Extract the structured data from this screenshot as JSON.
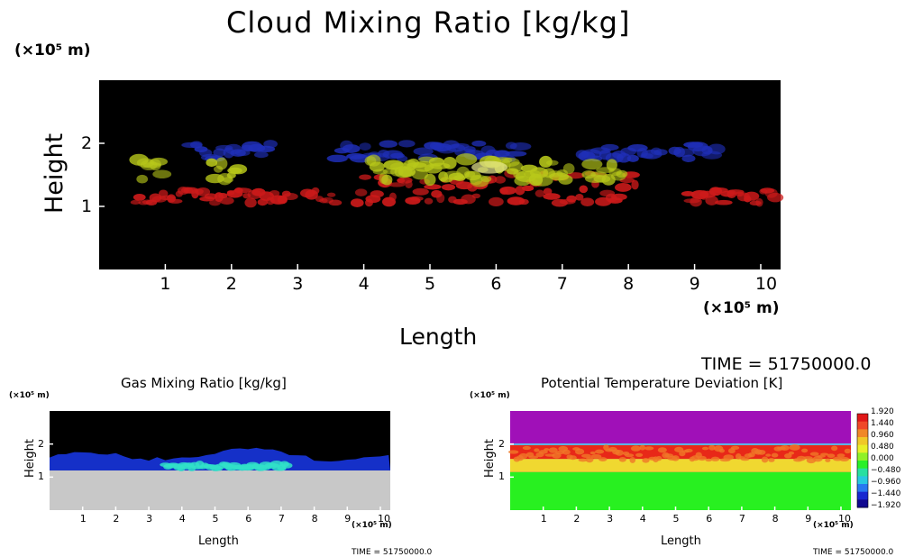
{
  "chart_data": [
    {
      "type": "heatmap",
      "title": "Cloud Mixing Ratio [kg/kg]",
      "xlabel": "Length",
      "ylabel": "Height",
      "x_unit": "(×10⁵ m)",
      "y_unit": "(×10⁵ m)",
      "xlim": [
        0,
        10.3
      ],
      "ylim": [
        0,
        3.0
      ],
      "x_ticks": [
        "1",
        "2",
        "3",
        "4",
        "5",
        "6",
        "7",
        "8",
        "9",
        "10"
      ],
      "y_ticks": [
        "1",
        "2"
      ],
      "background": "#000000",
      "layers": [
        {
          "color": "#cc1a1a",
          "height_range": [
            1.05,
            1.35
          ]
        },
        {
          "color": "#b8c81a",
          "height_range": [
            1.4,
            1.75
          ]
        },
        {
          "color": "#1f2fb8",
          "height_range": [
            1.75,
            2.0
          ]
        }
      ],
      "time_label": "TIME =  51750000.0"
    },
    {
      "type": "heatmap",
      "title": "Gas Mixing Ratio [kg/kg]",
      "xlabel": "Length",
      "ylabel": "Height",
      "x_unit": "(×10⁵ m)",
      "y_unit": "(×10⁵ m)",
      "xlim": [
        0,
        10.3
      ],
      "ylim": [
        0,
        3.0
      ],
      "x_ticks": [
        "1",
        "2",
        "3",
        "4",
        "5",
        "6",
        "7",
        "8",
        "9",
        "10"
      ],
      "y_ticks": [
        "1",
        "2"
      ],
      "colors": {
        "lower": "#c8c8c8",
        "band": "#1530c8",
        "peak": "#30e0c8",
        "top": "#000000"
      },
      "time_label": "TIME =  51750000.0"
    },
    {
      "type": "heatmap",
      "title": "Potential Temperature Deviation [K]",
      "xlabel": "Length",
      "ylabel": "Height",
      "x_unit": "(×10⁵ m)",
      "y_unit": "(×10⁵ m)",
      "xlim": [
        0,
        10.3
      ],
      "ylim": [
        0,
        3.0
      ],
      "x_ticks": [
        "1",
        "2",
        "3",
        "4",
        "5",
        "6",
        "7",
        "8",
        "9",
        "10"
      ],
      "y_ticks": [
        "1",
        "2"
      ],
      "colorbar": {
        "labels": [
          "1.920",
          "1.440",
          "0.960",
          "0.480",
          "0.000",
          "−0.480",
          "−0.960",
          "−1.440",
          "−1.920"
        ],
        "colors": [
          "#e01818",
          "#f04828",
          "#f08828",
          "#f0c828",
          "#e8f028",
          "#90f028",
          "#28f028",
          "#28e0a0",
          "#28c8e0",
          "#2878f0",
          "#1828d0",
          "#100890"
        ]
      },
      "colors": {
        "top": "#a010b8",
        "hot": "#e82818",
        "warm": "#f0d830",
        "lower": "#28f020"
      },
      "time_label": "TIME =  51750000.0"
    }
  ]
}
